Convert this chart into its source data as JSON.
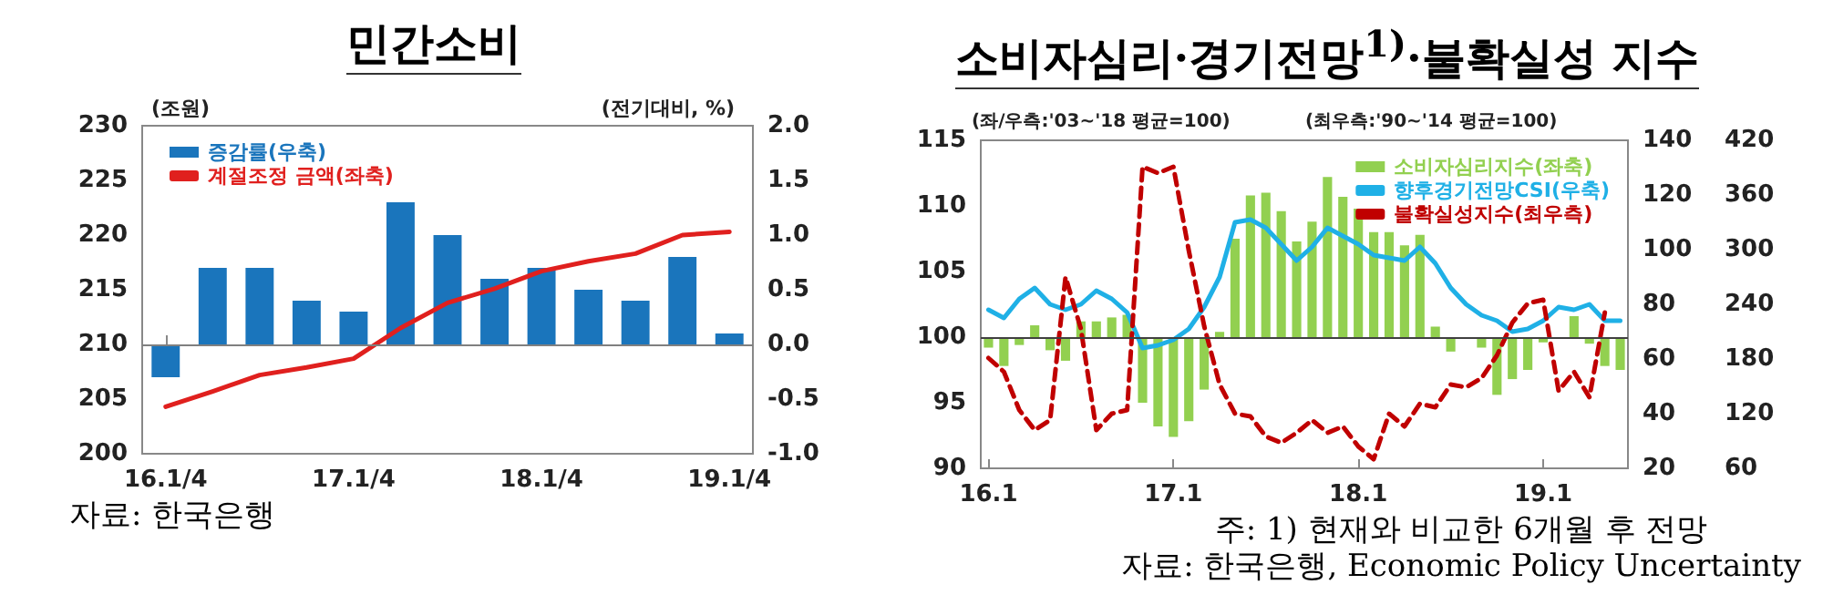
{
  "chart_data": [
    {
      "type": "bar",
      "title": "민간소비",
      "ylabel": "(조원)",
      "y2label": "(전기대비, %)",
      "categories": [
        "16.1/4",
        null,
        null,
        null,
        "17.1/4",
        null,
        null,
        null,
        "18.1/4",
        null,
        null,
        null,
        "19.1/4"
      ],
      "series": [
        {
          "name": "증감률(우축)",
          "axis": "y2",
          "color": "#1a75bc",
          "values": [
            -0.3,
            0.7,
            0.7,
            0.4,
            0.3,
            1.3,
            1.0,
            0.6,
            0.7,
            0.5,
            0.4,
            0.8,
            0.1
          ]
        },
        {
          "name": "계절조정 금액(좌축)",
          "type": "line",
          "color": "#e0201e",
          "line_style": "solid",
          "values": [
            204.3,
            205.7,
            207.2,
            207.9,
            208.7,
            211.5,
            213.8,
            215.1,
            216.7,
            217.6,
            218.3,
            220.0,
            220.3
          ]
        }
      ],
      "ylim": [
        200,
        230
      ],
      "yticks": [
        200,
        205,
        210,
        215,
        220,
        225,
        230
      ],
      "y2lim": [
        -1,
        2
      ],
      "y2ticks": [
        {
          "value": -1,
          "label": "-1.0"
        },
        {
          "value": -0.5,
          "label": "-0.5"
        },
        {
          "value": 0,
          "label": "0.0"
        },
        {
          "value": 0.5,
          "label": "0.5"
        },
        {
          "value": 1,
          "label": "1.0"
        },
        {
          "value": 1.5,
          "label": "1.5"
        },
        {
          "value": 2,
          "label": "2.0"
        }
      ],
      "ref_lines": [
        {
          "axis": "y2",
          "value": 0,
          "color": "#808080"
        }
      ],
      "legend": "top left",
      "marker": "none",
      "annotations": [
        "자료: 한국은행"
      ]
    },
    {
      "type": "bar",
      "title": "소비자심리·경기전망$^{1)}$·불확실성 지수",
      "ylabel": "(좌/우측:'03~'18 평균=100)",
      "y3label": "(최우측:'90~'14 평균=100)",
      "categories": [
        "16.1",
        null,
        null,
        null,
        null,
        null,
        null,
        null,
        null,
        null,
        null,
        null,
        "17.1",
        null,
        null,
        null,
        null,
        null,
        null,
        null,
        null,
        null,
        null,
        null,
        "18.1",
        null,
        null,
        null,
        null,
        null,
        null,
        null,
        null,
        null,
        null,
        null,
        "19.1",
        null,
        null,
        null,
        null,
        null
      ],
      "series": [
        {
          "name": "소비자심리지수(좌축)",
          "color": "#92d050",
          "base": [
            100,
            100,
            100,
            100,
            100,
            100,
            100,
            100,
            100,
            100,
            100,
            100,
            100,
            100,
            100,
            100,
            100,
            100,
            100,
            100,
            100,
            100,
            100,
            100,
            100,
            100,
            100,
            100,
            100,
            100,
            100,
            null,
            100,
            100,
            100,
            100,
            100,
            null,
            100,
            100,
            100,
            100
          ],
          "values": [
            -0.8,
            -2.2,
            -0.6,
            0.9,
            -1.0,
            -1.8,
            1.2,
            1.2,
            1.5,
            1.7,
            -5.0,
            -6.8,
            -7.6,
            -6.4,
            -4.0,
            0.4,
            7.5,
            10.8,
            11.0,
            9.6,
            7.3,
            8.8,
            12.2,
            10.7,
            9.8,
            8.0,
            8.0,
            7.0,
            7.8,
            0.8,
            -1.1,
            null,
            -0.8,
            -4.4,
            -3.2,
            -2.5,
            -0.4,
            null,
            1.6,
            -0.5,
            -2.2,
            -2.5
          ]
        },
        {
          "name": "향후경기전망CSI(우축)",
          "type": "line",
          "axis": "y2",
          "color": "#1fb0e6",
          "line_style": "solid",
          "values": [
            78,
            75,
            82,
            86,
            80,
            78,
            80,
            85,
            82,
            77,
            64,
            65,
            67,
            71,
            79,
            90,
            110,
            111,
            108,
            102,
            96,
            101,
            108,
            105,
            102,
            98,
            97,
            96,
            101,
            95,
            86,
            80,
            76,
            74,
            70,
            71,
            74,
            79,
            78,
            80,
            74,
            74
          ]
        },
        {
          "name": "불확실성지수(최우측)",
          "type": "line",
          "axis": "y3",
          "color": "#c00000",
          "line_style": "dashed",
          "values": [
            181,
            166,
            124,
            102,
            113,
            270,
            213,
            102,
            120,
            124,
            391,
            384,
            391,
            299,
            216,
            152,
            120,
            117,
            95,
            88,
            99,
            113,
            99,
            106,
            84,
            70,
            120,
            106,
            131,
            127,
            152,
            149,
            159,
            184,
            220,
            241,
            245,
            145,
            166,
            138,
            231,
            null
          ]
        }
      ],
      "ylim": [
        90,
        115
      ],
      "yticks": [
        90,
        95,
        100,
        105,
        110,
        115
      ],
      "y2lim": [
        20,
        140
      ],
      "y2ticks": [
        20,
        40,
        60,
        80,
        100,
        120,
        140
      ],
      "y3lim": [
        60,
        420
      ],
      "y3ticks": [
        60,
        120,
        180,
        240,
        300,
        360,
        420
      ],
      "ref_lines": [
        {
          "axis": "y",
          "value": 100,
          "color": "#404040"
        }
      ],
      "legend": "top right",
      "marker": "none",
      "annotations": [
        "주: 1) 현재와 비교한 6개월 후 전망",
        "자료: 한국은행, Economic Policy Uncertainty"
      ]
    }
  ]
}
